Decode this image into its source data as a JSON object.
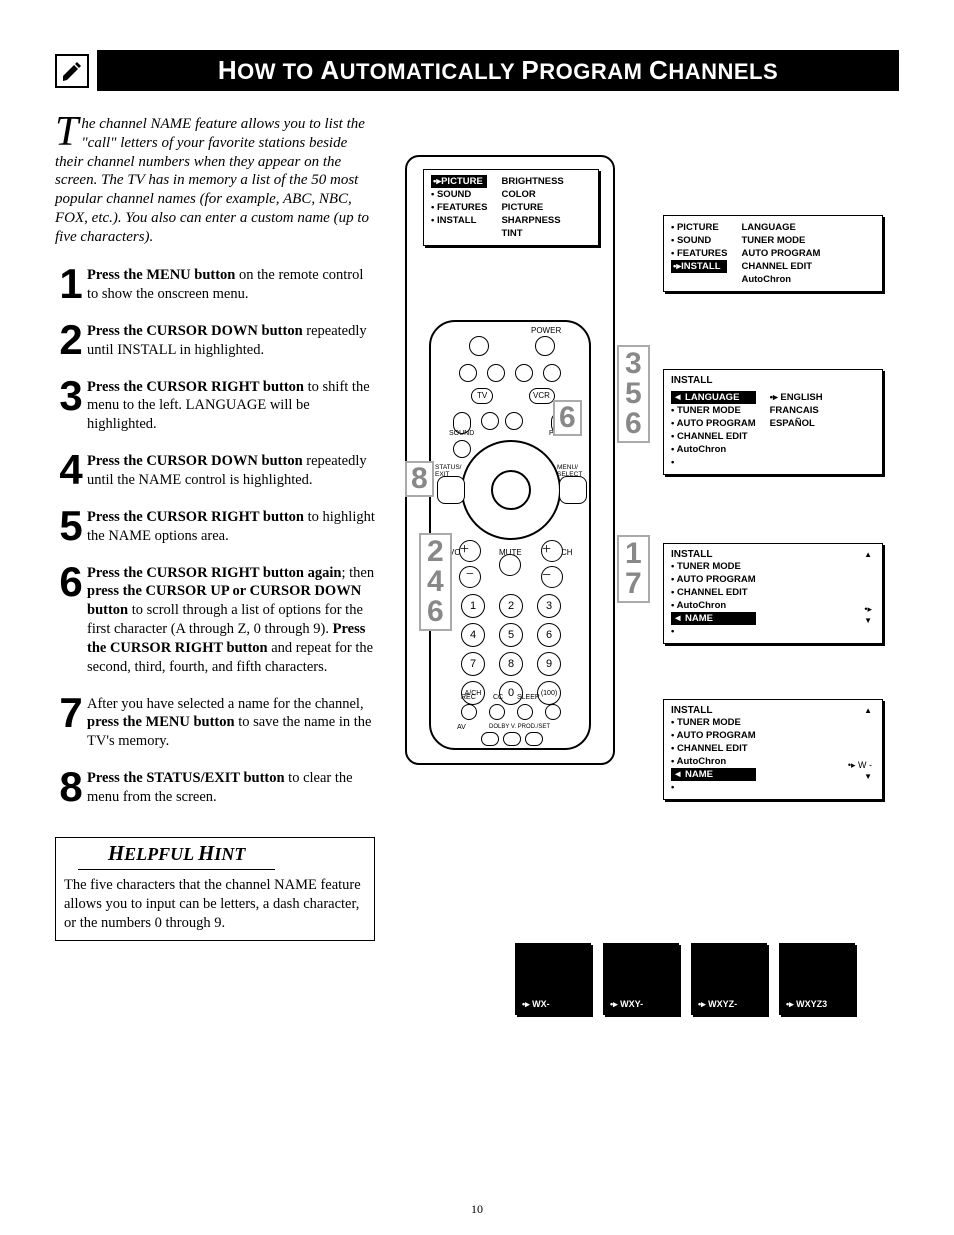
{
  "page_number": "10",
  "header": {
    "title_parts": [
      "H",
      "OW TO ",
      "A",
      "UTOMATICALLY ",
      "P",
      "ROGRAM ",
      "C",
      "HANNELS"
    ]
  },
  "intro": {
    "dropcap": "T",
    "text": "he channel NAME feature allows you to list the \"call\" letters of your favorite stations beside their channel numbers when they appear on the screen.  The TV has in memory a list of the 50 most popular channel names (for example, ABC, NBC, FOX, etc.).  You also can enter a custom name (up to five characters)."
  },
  "steps": [
    {
      "n": "1",
      "html": "<b>Press the MENU button</b> on the remote control to show the onscreen menu."
    },
    {
      "n": "2",
      "html": "<b>Press the CURSOR DOWN button</b> repeatedly until INSTALL in highlighted."
    },
    {
      "n": "3",
      "html": "<b>Press the CURSOR RIGHT button</b> to shift the menu to the left. LANGUAGE will be highlighted."
    },
    {
      "n": "4",
      "html": "<b>Press the CURSOR DOWN button</b> repeatedly until the NAME control is highlighted."
    },
    {
      "n": "5",
      "html": "<b>Press the CURSOR RIGHT button</b> to highlight the NAME options area."
    },
    {
      "n": "6",
      "html": "<b>Press the CURSOR RIGHT button again</b>; then <b>press the CURSOR UP or CURSOR DOWN button</b> to scroll through a list of options for the first character (A through Z, 0 through 9).  <b>Press the CURSOR RIGHT button</b> and repeat for the second, third, fourth, and fifth characters."
    },
    {
      "n": "7",
      "html": "After you have selected a name for the channel, <b>press the MENU button</b> to save the name in the TV's memory."
    },
    {
      "n": "8",
      "html": "<b>Press the STATUS/EXIT button</b> to clear the menu from the screen."
    }
  ],
  "hint": {
    "title": "HELPFUL HINT",
    "body": "The five characters that the channel NAME feature allows you to input can be letters, a dash character, or the numbers 0 through 9."
  },
  "labels": {
    "left_stack_a": [
      "3",
      "5",
      "6"
    ],
    "left_stack_b": [
      "1",
      "7"
    ],
    "right_stack": [
      "2",
      "4",
      "6"
    ],
    "eight": "8",
    "six": "6"
  },
  "menu1": {
    "left": [
      "PICTURE",
      "SOUND",
      "FEATURES",
      "INSTALL"
    ],
    "left_sel": 0,
    "right": [
      "BRIGHTNESS",
      "COLOR",
      "PICTURE",
      "SHARPNESS",
      "TINT"
    ]
  },
  "menu2": {
    "left": [
      "PICTURE",
      "SOUND",
      "FEATURES",
      "INSTALL"
    ],
    "left_sel": 3,
    "right": [
      "LANGUAGE",
      "TUNER MODE",
      "AUTO PROGRAM",
      "CHANNEL EDIT",
      "AutoChron"
    ]
  },
  "menu3": {
    "title": "INSTALL",
    "left": [
      "LANGUAGE",
      "TUNER MODE",
      "AUTO PROGRAM",
      "CHANNEL EDIT",
      "AutoChron",
      ""
    ],
    "left_sel": 0,
    "right": [
      "ENGLISH",
      "FRANCAIS",
      "ESPAÑOL"
    ]
  },
  "menu4": {
    "title": "INSTALL",
    "left": [
      "TUNER MODE",
      "AUTO PROGRAM",
      "CHANNEL EDIT",
      "AutoChron",
      "NAME",
      ""
    ],
    "left_sel": 4
  },
  "menu5": {
    "title": "INSTALL",
    "left": [
      "TUNER MODE",
      "AUTO PROGRAM",
      "CHANNEL EDIT",
      "AutoChron",
      "NAME",
      ""
    ],
    "left_sel": 4,
    "right_val": "W -"
  },
  "bottom_panels": [
    "WX-",
    "WXY-",
    "WXYZ-",
    "WXYZ3"
  ],
  "remote_labels": {
    "power": "POWER",
    "tv": "TV",
    "vcr": "VCR",
    "vol": "VOL",
    "ch": "CH",
    "mute": "MUTE",
    "sleep": "SLEEP",
    "cc": "CC",
    "rec": "REC",
    "status": "STATUS/\nEXIT",
    "menu": "MENU/\nSELECT",
    "sound": "SOUND",
    "picture": "PICTURE",
    "av": "AV",
    "dolby": "DOLBY V. PROD./SET"
  },
  "keypad": [
    [
      "1",
      "2",
      "3"
    ],
    [
      "4",
      "5",
      "6"
    ],
    [
      "7",
      "8",
      "9"
    ],
    [
      "A/CH",
      "0",
      "(100)"
    ]
  ],
  "colors": {
    "black": "#000000",
    "white": "#ffffff",
    "gray": "#888888",
    "lgray": "#aaaaaa"
  }
}
